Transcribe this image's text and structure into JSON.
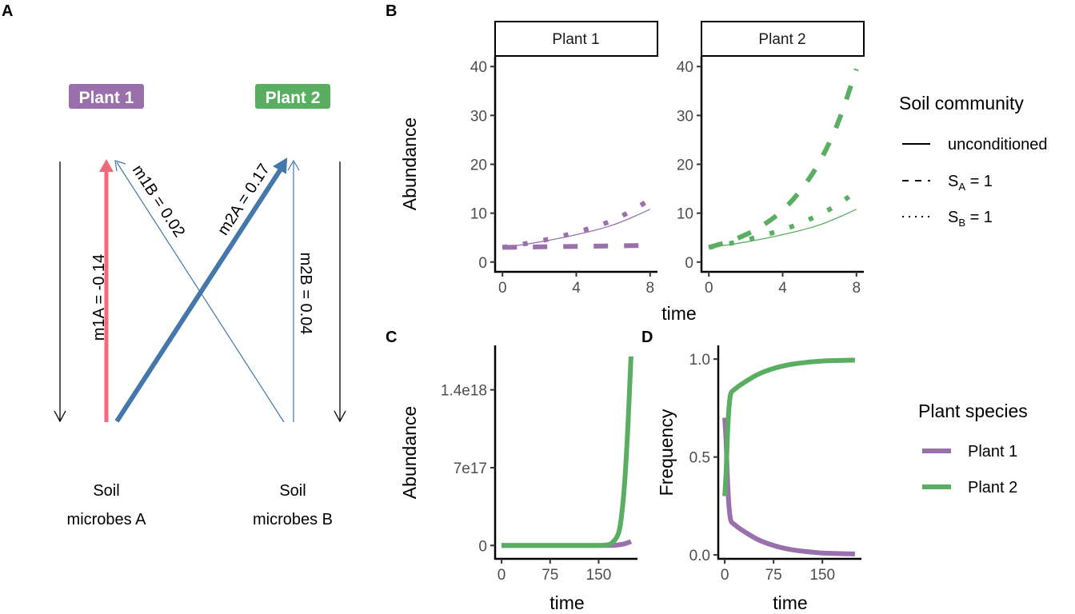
{
  "colors": {
    "plant1": "#9970AB",
    "plant2": "#5AAE61",
    "negative_arrow": "#EF6A7B",
    "positive_arrow": "#4477AA",
    "axis": "#000000",
    "tick_label": "#4d4d4d"
  },
  "panel_letters": {
    "a": "A",
    "b": "B",
    "c": "C",
    "d": "D"
  },
  "diagram": {
    "plant1_label": "Plant 1",
    "plant2_label": "Plant 2",
    "soilA_line1": "Soil",
    "soilA_line2": "microbes A",
    "soilB_line1": "Soil",
    "soilB_line2": "microbes B",
    "arrows": [
      {
        "id": "m1A",
        "label": "m1A = -0.14",
        "value": -0.14,
        "from": "Soil microbes A",
        "to": "Plant 1"
      },
      {
        "id": "m1B",
        "label": "m1B = 0.02",
        "value": 0.02,
        "from": "Soil microbes B",
        "to": "Plant 1"
      },
      {
        "id": "m2A",
        "label": "m2A = 0.17",
        "value": 0.17,
        "from": "Soil microbes A",
        "to": "Plant 2"
      },
      {
        "id": "m2B",
        "label": "m2B = 0.04",
        "value": 0.04,
        "from": "Soil microbes B",
        "to": "Plant 2"
      }
    ]
  },
  "legend_soil": {
    "title": "Soil community",
    "items": [
      {
        "label": "unconditioned",
        "sub": "",
        "suffix": "",
        "linetype": "solid"
      },
      {
        "label": "S",
        "sub": "A",
        "suffix": " = 1",
        "linetype": "dashed"
      },
      {
        "label": "S",
        "sub": "B",
        "suffix": " = 1",
        "linetype": "dotted"
      }
    ]
  },
  "legend_species": {
    "title": "Plant species",
    "items": [
      {
        "label": "Plant 1",
        "color": "#9970AB"
      },
      {
        "label": "Plant 2",
        "color": "#5AAE61"
      }
    ]
  },
  "chart_data": [
    {
      "panel": "B",
      "type": "line",
      "facets": [
        "Plant 1",
        "Plant 2"
      ],
      "xlabel": "time",
      "ylabel": "Abundance",
      "xlim": [
        0,
        8
      ],
      "ylim": [
        -2,
        42
      ],
      "xticks": [
        0,
        4,
        8
      ],
      "yticks": [
        0,
        10,
        20,
        30,
        40
      ],
      "grid": false,
      "legend": "right",
      "x": [
        0,
        1,
        2,
        3,
        4,
        5,
        6,
        7,
        8
      ],
      "series": [
        {
          "facet": "Plant 1",
          "name": "unconditioned",
          "linetype": "solid",
          "values": [
            3.0,
            3.5,
            4.1,
            4.8,
            5.6,
            6.5,
            7.6,
            9.1,
            10.8
          ]
        },
        {
          "facet": "Plant 1",
          "name": "S_A = 1",
          "linetype": "dashed",
          "values": [
            3.0,
            3.05,
            3.1,
            3.15,
            3.2,
            3.25,
            3.3,
            3.35,
            3.4
          ]
        },
        {
          "facet": "Plant 1",
          "name": "S_B = 1",
          "linetype": "dotted",
          "values": [
            3.0,
            3.6,
            4.3,
            5.1,
            6.1,
            7.2,
            8.6,
            10.5,
            12.8
          ]
        },
        {
          "facet": "Plant 2",
          "name": "unconditioned",
          "linetype": "solid",
          "values": [
            3.0,
            3.5,
            4.1,
            4.8,
            5.6,
            6.5,
            7.6,
            9.1,
            10.8
          ]
        },
        {
          "facet": "Plant 2",
          "name": "S_A = 1",
          "linetype": "dashed",
          "values": [
            3.0,
            4.1,
            5.6,
            7.7,
            10.6,
            14.8,
            20.5,
            28.5,
            39.5
          ]
        },
        {
          "facet": "Plant 2",
          "name": "S_B = 1",
          "linetype": "dotted",
          "values": [
            3.0,
            3.7,
            4.5,
            5.5,
            6.6,
            8.0,
            9.7,
            11.8,
            14.5
          ]
        }
      ]
    },
    {
      "panel": "C",
      "type": "line",
      "xlabel": "time",
      "ylabel": "Abundance",
      "xlim": [
        -10,
        210
      ],
      "ylim": [
        -1.2e+17,
        1.8e+18
      ],
      "xticks": [
        0,
        75,
        150
      ],
      "ytick_values": [
        0,
        7e+17,
        1.4e+18
      ],
      "ytick_labels": [
        "0",
        "7e17",
        "1.4e18"
      ],
      "grid": false,
      "legend": "right",
      "x": [
        0,
        25,
        50,
        75,
        100,
        125,
        150,
        160,
        170,
        180,
        185,
        190,
        195,
        200
      ],
      "series": [
        {
          "name": "Plant 1",
          "values": [
            0,
            0,
            0,
            0,
            0,
            0,
            0,
            0,
            1000000000000000.0,
            5000000000000000.0,
            1e+16,
            1.5e+16,
            2.5e+16,
            3.5e+16
          ]
        },
        {
          "name": "Plant 2",
          "values": [
            0,
            0,
            0,
            0,
            0,
            0,
            1000000000000000.0,
            4000000000000000.0,
            2e+16,
            1e+17,
            2.5e+17,
            5.5e+17,
            1.05e+18,
            1.7e+18
          ]
        }
      ]
    },
    {
      "panel": "D",
      "type": "line",
      "xlabel": "time",
      "ylabel": "Frequency",
      "xlim": [
        -10,
        210
      ],
      "ylim": [
        -0.02,
        1.07
      ],
      "xticks": [
        0,
        75,
        150
      ],
      "ytick_values": [
        0,
        0.5,
        1
      ],
      "ytick_labels": [
        "0.0",
        "0.5",
        "1.0"
      ],
      "grid": false,
      "legend": "right",
      "x": [
        0,
        2,
        4,
        6,
        8,
        10,
        15,
        25,
        50,
        75,
        100,
        125,
        150,
        175,
        200
      ],
      "series": [
        {
          "name": "Plant 1",
          "values": [
            0.7,
            0.58,
            0.4,
            0.27,
            0.2,
            0.17,
            0.155,
            0.13,
            0.08,
            0.048,
            0.028,
            0.017,
            0.01,
            0.007,
            0.005
          ]
        },
        {
          "name": "Plant 2",
          "values": [
            0.3,
            0.42,
            0.6,
            0.73,
            0.8,
            0.83,
            0.845,
            0.87,
            0.92,
            0.952,
            0.972,
            0.983,
            0.99,
            0.993,
            0.995
          ]
        }
      ]
    }
  ]
}
